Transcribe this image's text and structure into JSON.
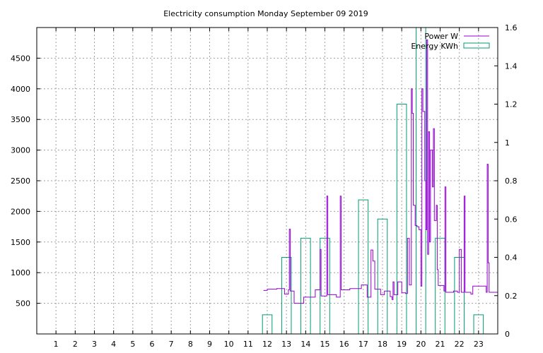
{
  "chart_data": {
    "type": "line",
    "title": "Electricity consumption Monday September 09 2019",
    "xlabel": "",
    "ylabel": "",
    "y2label": "",
    "xlim": [
      0,
      24
    ],
    "ylim": [
      0,
      5000
    ],
    "y2lim": [
      0,
      1.6
    ],
    "x_ticks": [
      1,
      2,
      3,
      4,
      5,
      6,
      7,
      8,
      9,
      10,
      11,
      12,
      13,
      14,
      15,
      16,
      17,
      18,
      19,
      20,
      21,
      22,
      23
    ],
    "y_ticks": [
      500,
      1000,
      1500,
      2000,
      2500,
      3000,
      3500,
      4000,
      4500
    ],
    "y2_ticks": [
      "0",
      "0.2",
      "0.4",
      "0.6",
      "0.8",
      "1",
      "1.2",
      "1.4",
      "1.6"
    ],
    "grid": true,
    "legend_position": "top-right",
    "series": [
      {
        "name": "Power W",
        "axis": "y",
        "color": "#9400d3",
        "style": "step",
        "points": [
          [
            11.8,
            710
          ],
          [
            12.0,
            730
          ],
          [
            12.5,
            740
          ],
          [
            12.9,
            650
          ],
          [
            13.1,
            720
          ],
          [
            13.15,
            1710
          ],
          [
            13.2,
            700
          ],
          [
            13.4,
            500
          ],
          [
            13.9,
            600
          ],
          [
            14.5,
            720
          ],
          [
            14.75,
            1380
          ],
          [
            14.8,
            620
          ],
          [
            15.1,
            2250
          ],
          [
            15.15,
            640
          ],
          [
            15.6,
            600
          ],
          [
            15.8,
            2250
          ],
          [
            15.85,
            720
          ],
          [
            16.3,
            740
          ],
          [
            16.9,
            800
          ],
          [
            17.2,
            600
          ],
          [
            17.4,
            1370
          ],
          [
            17.5,
            1190
          ],
          [
            17.6,
            730
          ],
          [
            17.9,
            640
          ],
          [
            18.1,
            700
          ],
          [
            18.4,
            610
          ],
          [
            18.5,
            560
          ],
          [
            18.55,
            850
          ],
          [
            18.6,
            640
          ],
          [
            18.8,
            850
          ],
          [
            19.0,
            670
          ],
          [
            19.2,
            660
          ],
          [
            19.3,
            1560
          ],
          [
            19.4,
            800
          ],
          [
            19.5,
            4000
          ],
          [
            19.55,
            3600
          ],
          [
            19.6,
            2100
          ],
          [
            19.7,
            1770
          ],
          [
            19.8,
            1750
          ],
          [
            19.9,
            1700
          ],
          [
            20.0,
            780
          ],
          [
            20.05,
            4000
          ],
          [
            20.1,
            3630
          ],
          [
            20.2,
            2500
          ],
          [
            20.25,
            1700
          ],
          [
            20.3,
            4800
          ],
          [
            20.35,
            1300
          ],
          [
            20.4,
            3300
          ],
          [
            20.45,
            1500
          ],
          [
            20.5,
            3000
          ],
          [
            20.6,
            2400
          ],
          [
            20.65,
            3350
          ],
          [
            20.7,
            1850
          ],
          [
            20.8,
            2100
          ],
          [
            20.85,
            1050
          ],
          [
            20.9,
            790
          ],
          [
            21.2,
            700
          ],
          [
            21.25,
            2400
          ],
          [
            21.3,
            680
          ],
          [
            21.7,
            700
          ],
          [
            21.9,
            680
          ],
          [
            22.0,
            1380
          ],
          [
            22.1,
            680
          ],
          [
            22.25,
            2250
          ],
          [
            22.3,
            680
          ],
          [
            22.6,
            650
          ],
          [
            22.7,
            780
          ],
          [
            23.3,
            780
          ],
          [
            23.4,
            680
          ],
          [
            23.45,
            2770
          ],
          [
            23.5,
            1160
          ],
          [
            23.55,
            680
          ],
          [
            24.0,
            680
          ]
        ]
      },
      {
        "name": "Energy KWh",
        "axis": "y2",
        "color": "#009e73",
        "style": "histogram",
        "bars": [
          [
            12,
            0.1
          ],
          [
            13,
            0.4
          ],
          [
            14,
            0.5
          ],
          [
            15,
            0.5
          ],
          [
            16,
            0.0
          ],
          [
            17,
            0.7
          ],
          [
            18,
            0.6
          ],
          [
            19,
            1.2
          ],
          [
            20,
            1.7
          ],
          [
            21,
            0.5
          ],
          [
            22,
            0.4
          ],
          [
            23,
            0.1
          ]
        ]
      }
    ]
  }
}
